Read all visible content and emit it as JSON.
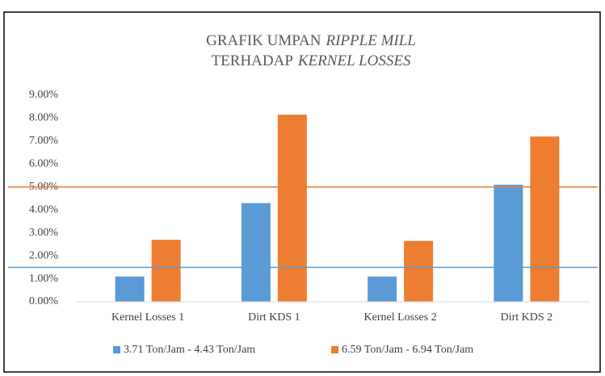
{
  "chart_data": {
    "type": "bar",
    "title_lines": [
      {
        "normal": "GRAFIK UMPAN",
        "italic": "RIPPLE MILL"
      },
      {
        "normal": "TERHADAP",
        "italic": "KERNEL LOSSES"
      }
    ],
    "categories": [
      "Kernel Losses 1",
      "Dirt KDS 1",
      "Kernel Losses 2",
      "Dirt KDS 2"
    ],
    "series": [
      {
        "name": "3.71 Ton/Jam - 4.43 Ton/Jam",
        "color": "#5b9bd5",
        "values": [
          1.1,
          4.3,
          1.1,
          5.1
        ]
      },
      {
        "name": "6.59 Ton/Jam - 6.94 Ton/Jam",
        "color": "#ed7d31",
        "values": [
          2.7,
          8.15,
          2.65,
          7.2
        ]
      }
    ],
    "reference_lines": [
      {
        "value": 1.5,
        "color": "#5b9bd5"
      },
      {
        "value": 5,
        "color": "#ed7d31"
      }
    ],
    "ylim": [
      0,
      9
    ],
    "yticks": [
      {
        "value": 0,
        "label": "0.00%"
      },
      {
        "value": 1,
        "label": "1.00%"
      },
      {
        "value": 2,
        "label": "2.00%"
      },
      {
        "value": 3,
        "label": "3.00%"
      },
      {
        "value": 4,
        "label": "4.00%"
      },
      {
        "value": 5,
        "label": "5.00%"
      },
      {
        "value": 6,
        "label": "6.00%"
      },
      {
        "value": 7,
        "label": "7.00%"
      },
      {
        "value": 8,
        "label": "8.00%"
      },
      {
        "value": 9,
        "label": "9.00%"
      }
    ],
    "grid": false,
    "legend": "bottom"
  }
}
